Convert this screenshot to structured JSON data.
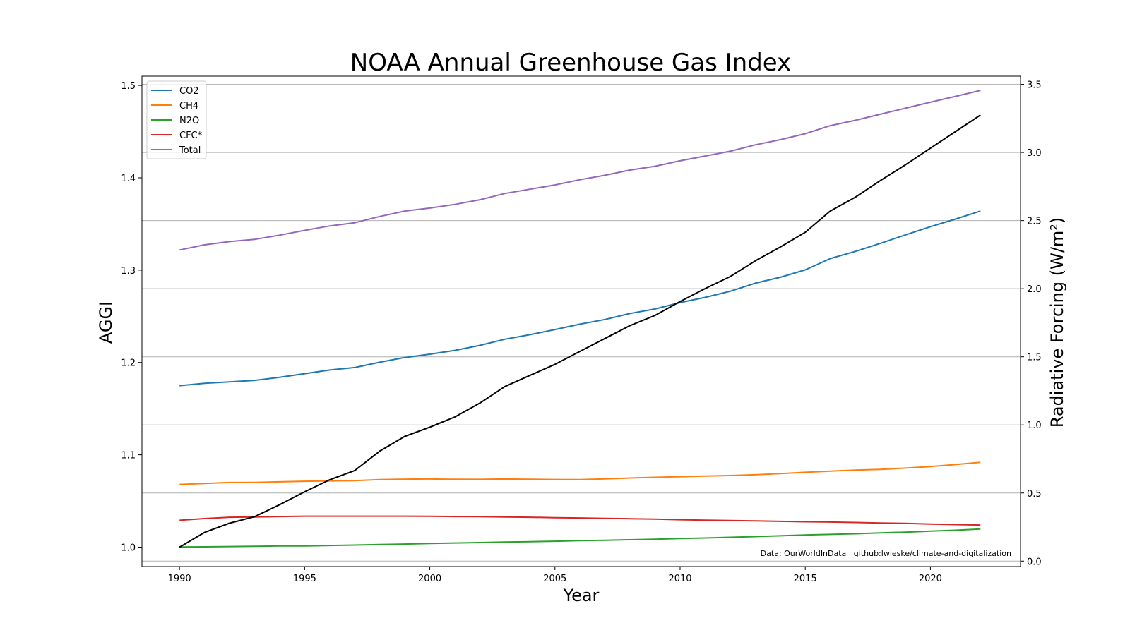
{
  "chart_data": {
    "type": "line",
    "title": "NOAA Annual Greenhouse Gas Index",
    "xlabel": "Year",
    "ylabel": "AGGI",
    "y2label": "Radiative Forcing (W/m²)",
    "xlim": [
      1988.5,
      2023.6
    ],
    "ylim": [
      0.979,
      1.51
    ],
    "y2lim": [
      -0.04,
      3.56
    ],
    "xticks": [
      1990,
      1995,
      2000,
      2005,
      2010,
      2015,
      2020
    ],
    "yticks": [
      1.0,
      1.1,
      1.2,
      1.3,
      1.4,
      1.5
    ],
    "y2ticks": [
      0.0,
      0.5,
      1.0,
      1.5,
      2.0,
      2.5,
      3.0,
      3.5
    ],
    "grid": "right-axis horizontal",
    "legend_position": "top-left",
    "annotation": "Data: OurWorldInData   github:lwieske/climate-and-digitalization",
    "x": [
      1990,
      1991,
      1992,
      1993,
      1994,
      1995,
      1996,
      1997,
      1998,
      1999,
      2000,
      2001,
      2002,
      2003,
      2004,
      2005,
      2006,
      2007,
      2008,
      2009,
      2010,
      2011,
      2012,
      2013,
      2014,
      2015,
      2016,
      2017,
      2018,
      2019,
      2020,
      2021,
      2022
    ],
    "aggi": {
      "color": "#000000",
      "values": [
        1.0,
        1.016,
        1.026,
        1.033,
        1.046,
        1.06,
        1.073,
        1.083,
        1.104,
        1.12,
        1.13,
        1.141,
        1.156,
        1.174,
        1.186,
        1.198,
        1.212,
        1.226,
        1.24,
        1.251,
        1.266,
        1.28,
        1.293,
        1.31,
        1.325,
        1.341,
        1.364,
        1.379,
        1.397,
        1.414,
        1.432,
        1.45,
        1.468
      ]
    },
    "series": [
      {
        "name": "CO2",
        "color": "#1f77b4",
        "values": [
          1.288,
          1.305,
          1.316,
          1.327,
          1.349,
          1.376,
          1.403,
          1.421,
          1.46,
          1.495,
          1.519,
          1.547,
          1.584,
          1.629,
          1.662,
          1.7,
          1.74,
          1.774,
          1.818,
          1.851,
          1.898,
          1.936,
          1.981,
          2.04,
          2.084,
          2.138,
          2.221,
          2.274,
          2.333,
          2.395,
          2.455,
          2.511,
          2.57
        ]
      },
      {
        "name": "CH4",
        "color": "#ff7f0e",
        "values": [
          0.563,
          0.57,
          0.577,
          0.578,
          0.582,
          0.586,
          0.589,
          0.591,
          0.598,
          0.602,
          0.603,
          0.601,
          0.6,
          0.603,
          0.601,
          0.599,
          0.598,
          0.604,
          0.61,
          0.615,
          0.62,
          0.624,
          0.628,
          0.634,
          0.642,
          0.652,
          0.661,
          0.668,
          0.674,
          0.683,
          0.694,
          0.709,
          0.725
        ]
      },
      {
        "name": "N2O",
        "color": "#2ca02c",
        "values": [
          0.104,
          0.105,
          0.107,
          0.109,
          0.111,
          0.112,
          0.115,
          0.118,
          0.122,
          0.125,
          0.13,
          0.133,
          0.136,
          0.14,
          0.143,
          0.146,
          0.15,
          0.153,
          0.157,
          0.161,
          0.166,
          0.17,
          0.175,
          0.18,
          0.186,
          0.192,
          0.196,
          0.201,
          0.207,
          0.213,
          0.22,
          0.227,
          0.236
        ]
      },
      {
        "name": "CFC*",
        "color": "#d62728",
        "values": [
          0.3,
          0.312,
          0.322,
          0.324,
          0.327,
          0.33,
          0.33,
          0.33,
          0.33,
          0.33,
          0.329,
          0.327,
          0.326,
          0.324,
          0.322,
          0.319,
          0.317,
          0.314,
          0.311,
          0.308,
          0.304,
          0.301,
          0.298,
          0.295,
          0.292,
          0.289,
          0.287,
          0.284,
          0.28,
          0.277,
          0.272,
          0.268,
          0.265
        ]
      },
      {
        "name": "Total",
        "color": "#9467bd",
        "values": [
          2.284,
          2.322,
          2.346,
          2.362,
          2.393,
          2.428,
          2.461,
          2.484,
          2.53,
          2.57,
          2.592,
          2.619,
          2.653,
          2.699,
          2.73,
          2.762,
          2.8,
          2.833,
          2.871,
          2.899,
          2.939,
          2.974,
          3.009,
          3.056,
          3.094,
          3.138,
          3.197,
          3.236,
          3.281,
          3.325,
          3.369,
          3.412,
          3.456
        ]
      }
    ]
  }
}
